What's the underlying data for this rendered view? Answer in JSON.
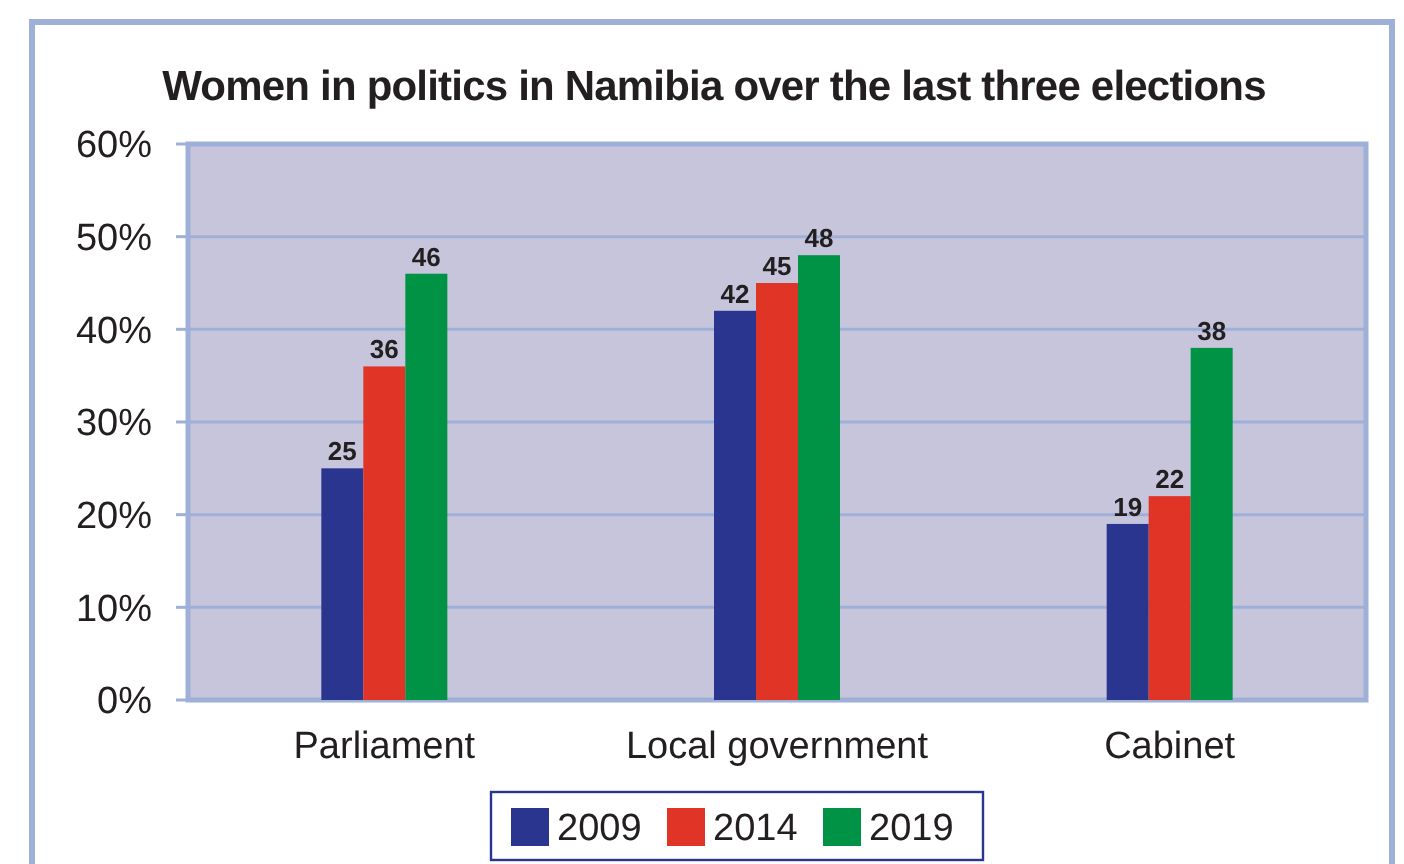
{
  "chart_data": {
    "type": "bar",
    "title": "Women in politics in Namibia over the last three elections",
    "categories": [
      "Parliament",
      "Local government",
      "Cabinet"
    ],
    "series": [
      {
        "name": "2009",
        "color": "#2a3590",
        "values": [
          25,
          42,
          19
        ]
      },
      {
        "name": "2014",
        "color": "#e03426",
        "values": [
          36,
          45,
          22
        ]
      },
      {
        "name": "2019",
        "color": "#009245",
        "values": [
          46,
          48,
          38
        ]
      }
    ],
    "ylim": [
      0,
      60
    ],
    "yticks": [
      {
        "value": 0,
        "label": "0%"
      },
      {
        "value": 10,
        "label": "10%"
      },
      {
        "value": 20,
        "label": "20%"
      },
      {
        "value": 30,
        "label": "30%"
      },
      {
        "value": 40,
        "label": "40%"
      },
      {
        "value": 50,
        "label": "50%"
      },
      {
        "value": 60,
        "label": "60%"
      }
    ],
    "grid": "y",
    "legend": "bottom",
    "data_labels": true
  }
}
